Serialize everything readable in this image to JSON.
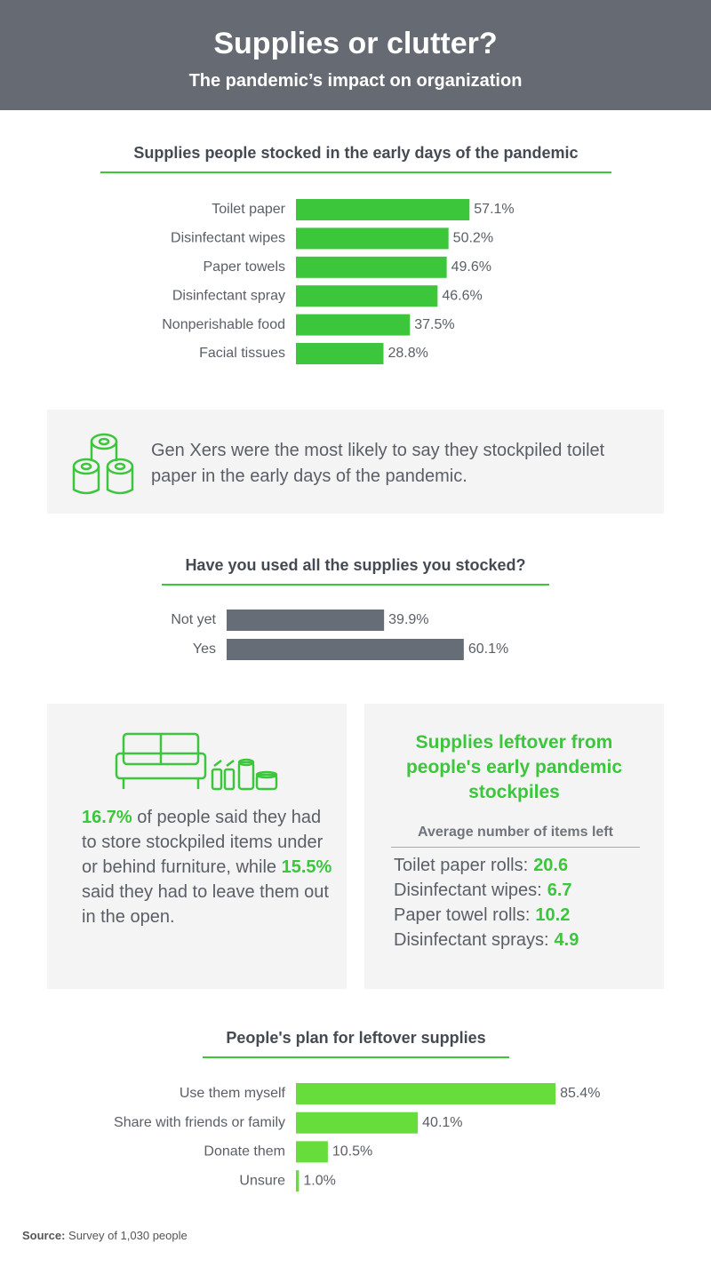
{
  "header": {
    "title": "Supplies or clutter?",
    "subtitle": "The pandemic’s impact on organization"
  },
  "chart_data": [
    {
      "type": "hbar",
      "title": "Supplies people stocked in the early days of the pandemic",
      "categories": [
        "Toilet paper",
        "Disinfectant wipes",
        "Paper towels",
        "Disinfectant spray",
        "Nonperishable food",
        "Facial tissues"
      ],
      "values": [
        57.1,
        50.2,
        49.6,
        46.6,
        37.5,
        28.8
      ],
      "value_labels": [
        "57.1%",
        "50.2%",
        "49.6%",
        "46.6%",
        "37.5%",
        "28.8%"
      ],
      "color": "#3cc63c"
    },
    {
      "type": "hbar",
      "title": "Have you used all the supplies you stocked?",
      "categories": [
        "Not yet",
        "Yes"
      ],
      "values": [
        39.9,
        60.1
      ],
      "value_labels": [
        "39.9%",
        "60.1%"
      ],
      "color": "#676d76"
    },
    {
      "type": "hbar",
      "title": "People's plan for leftover supplies",
      "categories": [
        "Use them myself",
        "Share with friends or family",
        "Donate them",
        "Unsure"
      ],
      "values": [
        85.4,
        40.1,
        10.5,
        1.0
      ],
      "value_labels": [
        "85.4%",
        "40.1%",
        "10.5%",
        "1.0%"
      ],
      "color": "#66dd3a"
    }
  ],
  "callout": {
    "text": "Gen Xers were the most likely to say they stockpiled toilet paper in the early days of the pandemic."
  },
  "storage": {
    "stat1": "16.7%",
    "text1": " of people said they had to store stockpiled items under or behind furniture, while ",
    "stat2": "15.5%",
    "text2": " said they had to leave them out in the open."
  },
  "leftover": {
    "title": "Supplies leftover from people's early pandemic stockpiles",
    "subtitle": "Average number of items left",
    "items": [
      {
        "label": "Toilet paper rolls:",
        "value": 20.6
      },
      {
        "label": "Disinfectant wipes:",
        "value": 6.7
      },
      {
        "label": "Paper towel rolls:",
        "value": 10.2
      },
      {
        "label": "Disinfectant sprays:",
        "value": 4.9
      }
    ]
  },
  "source": {
    "label": "Source:",
    "text": "Survey of 1,030 people"
  }
}
